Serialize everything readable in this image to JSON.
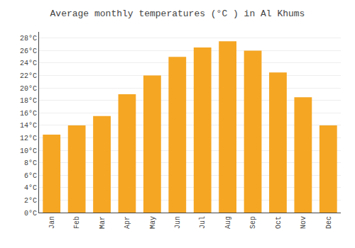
{
  "chart_data": {
    "type": "bar",
    "title": "Average monthly temperatures (°C ) in Al Khums",
    "categories": [
      "Jan",
      "Feb",
      "Mar",
      "Apr",
      "May",
      "Jun",
      "Jul",
      "Aug",
      "Sep",
      "Oct",
      "Nov",
      "Dec"
    ],
    "values": [
      12.5,
      14.0,
      15.5,
      19.0,
      22.0,
      25.0,
      26.5,
      27.5,
      26.0,
      22.5,
      18.5,
      14.0
    ],
    "color": "#F5A623",
    "ylim": [
      0,
      29
    ],
    "yticks": [
      {
        "value": 0,
        "label": "0°C"
      },
      {
        "value": 2,
        "label": "2°C"
      },
      {
        "value": 4,
        "label": "4°C"
      },
      {
        "value": 6,
        "label": "6°C"
      },
      {
        "value": 8,
        "label": "8°C"
      },
      {
        "value": 10,
        "label": "10°C"
      },
      {
        "value": 12,
        "label": "12°C"
      },
      {
        "value": 14,
        "label": "14°C"
      },
      {
        "value": 16,
        "label": "16°C"
      },
      {
        "value": 18,
        "label": "18°C"
      },
      {
        "value": 20,
        "label": "20°C"
      },
      {
        "value": 22,
        "label": "22°C"
      },
      {
        "value": 24,
        "label": "24°C"
      },
      {
        "value": 26,
        "label": "26°C"
      },
      {
        "value": 28,
        "label": "28°C"
      }
    ],
    "grid": true
  }
}
